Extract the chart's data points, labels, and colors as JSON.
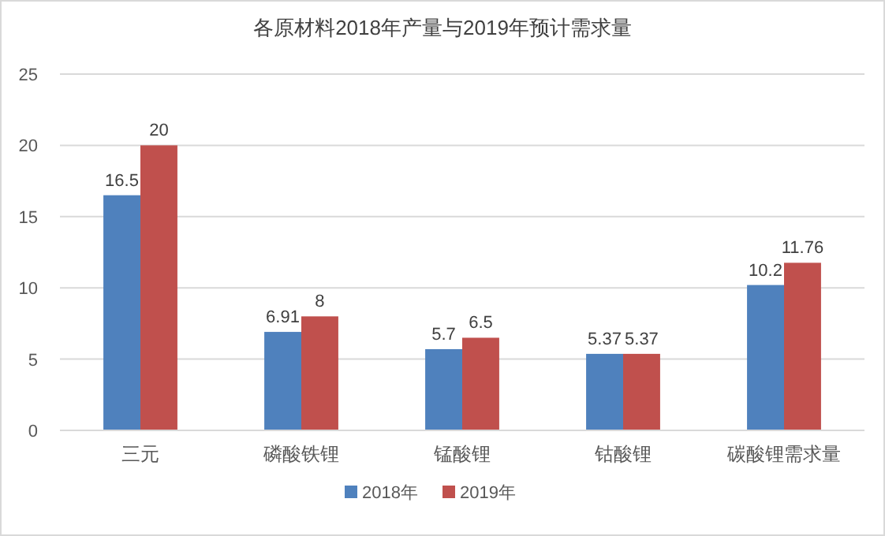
{
  "chart_data": {
    "type": "bar",
    "title": "各原材料2018年产量与2019年预计需求量",
    "categories": [
      "三元",
      "磷酸铁锂",
      "锰酸锂",
      "钴酸锂",
      "碳酸锂需求量"
    ],
    "series": [
      {
        "name": "2018年",
        "color": "#4f81bd",
        "values": [
          16.5,
          6.91,
          5.7,
          5.37,
          10.2
        ]
      },
      {
        "name": "2019年",
        "color": "#c0504d",
        "values": [
          20,
          8,
          6.5,
          5.37,
          11.76
        ]
      }
    ],
    "ylim": [
      0,
      25
    ],
    "yticks": [
      0,
      5,
      10,
      15,
      20,
      25
    ],
    "grid": "y",
    "legend": "bottom",
    "data_labels": true
  }
}
